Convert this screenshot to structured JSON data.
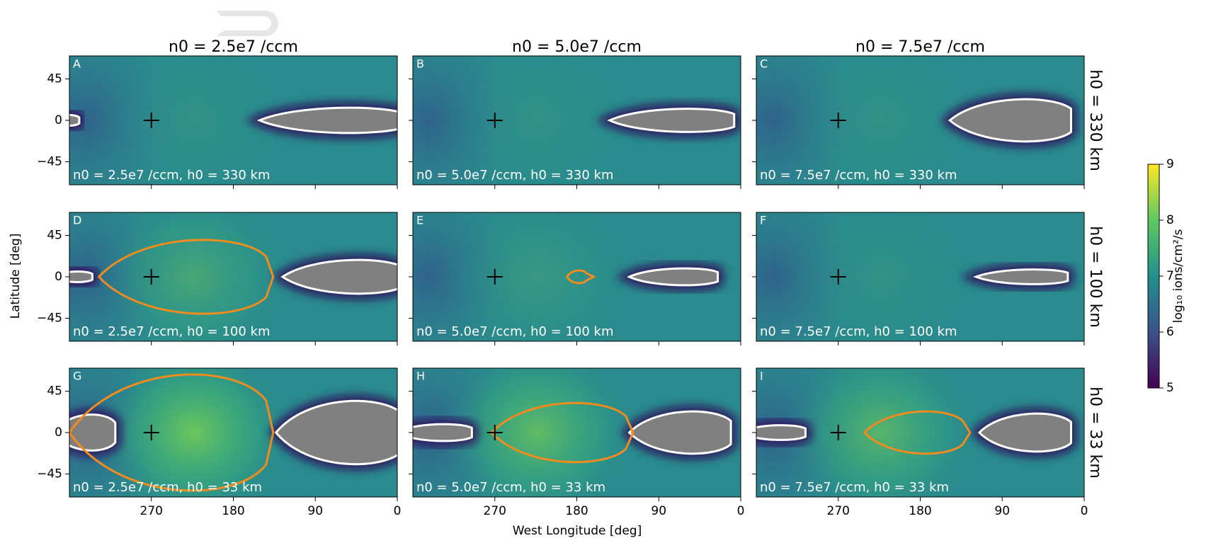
{
  "chart_data": {
    "type": "heatmap",
    "colormap": "viridis",
    "column_titles": [
      "n0 = 2.5e7 /ccm",
      "n0 = 5.0e7 /ccm",
      "n0 = 7.5e7 /ccm"
    ],
    "row_titles": [
      "h0 = 330 km",
      "h0 = 100 km",
      "h0 = 33 km"
    ],
    "panels": [
      {
        "letter": "A",
        "annotation": "n0 = 2.5e7 /ccm, h0 = 330 km"
      },
      {
        "letter": "B",
        "annotation": "n0 = 5.0e7 /ccm, h0 = 330 km"
      },
      {
        "letter": "C",
        "annotation": "n0 = 7.5e7 /ccm, h0 = 330 km"
      },
      {
        "letter": "D",
        "annotation": "n0 = 2.5e7 /ccm, h0 = 100 km"
      },
      {
        "letter": "E",
        "annotation": "n0 = 5.0e7 /ccm, h0 = 100 km"
      },
      {
        "letter": "F",
        "annotation": "n0 = 7.5e7 /ccm, h0 = 100 km"
      },
      {
        "letter": "G",
        "annotation": "n0 = 2.5e7 /ccm, h0 = 33 km"
      },
      {
        "letter": "H",
        "annotation": "n0 = 5.0e7 /ccm, h0 = 33 km"
      },
      {
        "letter": "I",
        "annotation": "n0 = 7.5e7 /ccm, h0 = 33 km"
      }
    ],
    "xlabel": "West Longitude [deg]",
    "ylabel": "Latitude [deg]",
    "xlim": [
      360,
      0
    ],
    "xticks": [
      270,
      180,
      90,
      0
    ],
    "ylim": [
      -70,
      70
    ],
    "yticks": [
      {
        "value": -45,
        "label": "−45"
      },
      0,
      45
    ],
    "marker": {
      "x": 270,
      "y": 0
    },
    "colorbar": {
      "label": "log₁₀ ions/cm²/s",
      "lim": [
        5,
        9
      ],
      "ticks": [
        5,
        6,
        7,
        8,
        9
      ]
    }
  }
}
